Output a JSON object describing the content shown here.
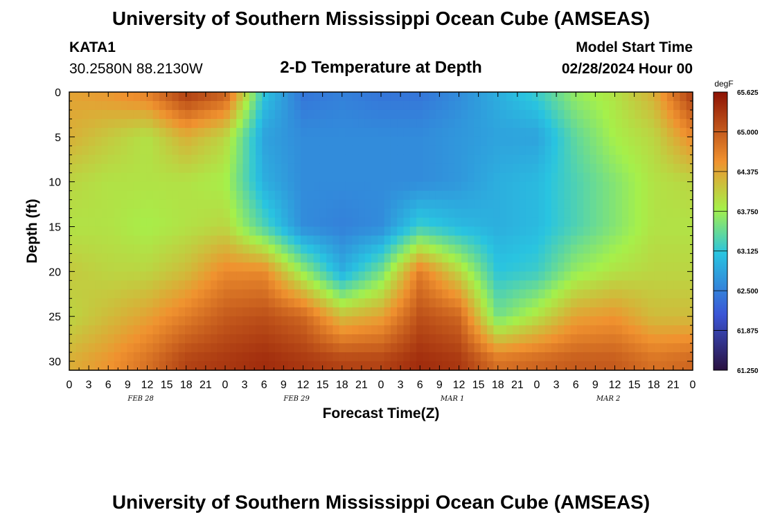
{
  "header": {
    "title": "University of Southern Mississippi Ocean Cube (AMSEAS)",
    "station": "KATA1",
    "coords": "30.2580N  88.2130W",
    "plot_title": "2-D Temperature at Depth",
    "model_start_label": "Model Start Time",
    "model_start_value": "02/28/2024 Hour 00"
  },
  "footer": {
    "title": "University of Southern Mississippi Ocean Cube (AMSEAS)"
  },
  "colors": {
    "text": "#000000",
    "background": "#ffffff",
    "colormap_low": "#2a1140",
    "colormap_mid_blue": "#3b55d6",
    "colormap_cyan": "#29c4e0",
    "colormap_green": "#a6f04a",
    "colormap_orange": "#f0922f",
    "colormap_high": "#8c1204"
  },
  "chart_data": {
    "type": "heatmap",
    "title": "2-D Temperature at Depth",
    "xlabel": "Forecast Time(Z)",
    "ylabel": "Depth (ft)",
    "colorbar_label": "degF",
    "x_hours_range": [
      0,
      96
    ],
    "x_tick_labels": [
      "0",
      "3",
      "6",
      "9",
      "12",
      "15",
      "18",
      "21",
      "0",
      "3",
      "6",
      "9",
      "12",
      "15",
      "18",
      "21",
      "0",
      "3",
      "6",
      "9",
      "12",
      "15",
      "18",
      "21",
      "0",
      "3",
      "6",
      "9",
      "12",
      "15",
      "18",
      "21",
      "0"
    ],
    "date_labels": [
      "FEB 28",
      "FEB 29",
      "MAR 1",
      "MAR 2"
    ],
    "y_range": [
      0,
      31
    ],
    "y_ticks": [
      0,
      5,
      10,
      15,
      20,
      25,
      30
    ],
    "y_tick_labels": [
      "0",
      "5",
      "10",
      "15",
      "20",
      "25",
      "30"
    ],
    "color_range": [
      61.25,
      65.625
    ],
    "colorbar_ticks": [
      "65.625",
      "65.000",
      "64.375",
      "63.750",
      "63.125",
      "62.500",
      "61.875",
      "61.250"
    ],
    "depth_levels_ft": [
      0,
      5,
      10,
      15,
      20,
      25,
      30
    ],
    "time_hours": [
      0,
      6,
      12,
      18,
      24,
      30,
      36,
      42,
      48,
      54,
      60,
      66,
      72,
      78,
      84,
      90,
      96
    ],
    "temperature_degF": [
      [
        64.4,
        64.5,
        64.7,
        65.3,
        65.0,
        63.1,
        62.4,
        62.5,
        62.4,
        62.4,
        62.6,
        62.9,
        63.2,
        63.7,
        63.9,
        64.3,
        65.3
      ],
      [
        64.3,
        64.1,
        63.9,
        64.3,
        64.0,
        62.8,
        62.6,
        62.6,
        62.6,
        62.6,
        62.7,
        62.8,
        62.8,
        63.4,
        63.8,
        64.0,
        64.6
      ],
      [
        64.0,
        63.9,
        63.9,
        63.9,
        63.8,
        62.9,
        62.6,
        62.6,
        62.6,
        62.6,
        62.7,
        62.9,
        63.0,
        63.3,
        63.6,
        63.9,
        64.0
      ],
      [
        63.9,
        63.9,
        63.8,
        63.9,
        64.0,
        63.3,
        62.6,
        62.5,
        62.6,
        63.2,
        63.0,
        62.9,
        63.0,
        63.3,
        63.6,
        63.9,
        63.9
      ],
      [
        64.1,
        64.0,
        64.0,
        64.2,
        64.6,
        64.6,
        63.7,
        62.9,
        63.5,
        64.7,
        64.0,
        63.1,
        63.2,
        63.7,
        63.9,
        64.0,
        64.0
      ],
      [
        64.0,
        64.2,
        64.4,
        64.7,
        65.0,
        65.1,
        64.9,
        64.2,
        64.4,
        65.1,
        64.9,
        63.5,
        63.9,
        64.4,
        64.5,
        64.2,
        64.2
      ],
      [
        64.3,
        64.5,
        64.8,
        65.2,
        65.3,
        65.4,
        65.3,
        65.2,
        65.2,
        65.4,
        65.3,
        64.8,
        64.9,
        65.0,
        65.0,
        64.8,
        64.9
      ]
    ]
  }
}
